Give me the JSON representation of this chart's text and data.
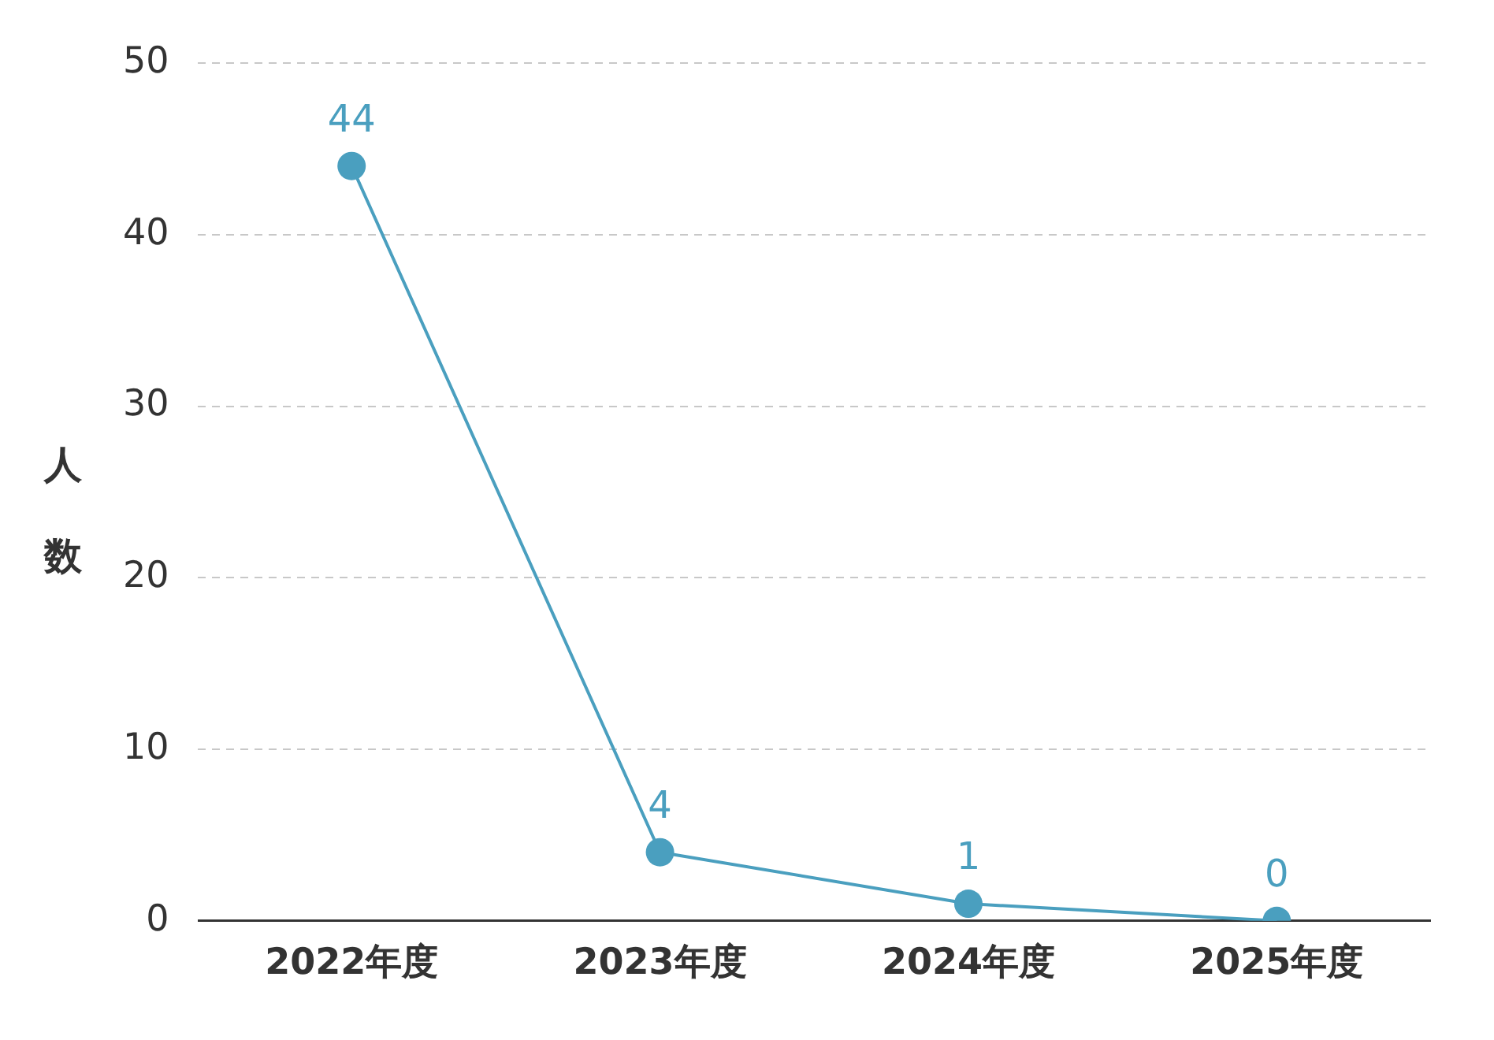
{
  "chart_data": {
    "type": "line",
    "ylabel": "人数",
    "categories": [
      "2022年度",
      "2023年度",
      "2024年度",
      "2025年度"
    ],
    "series": [
      {
        "color": "#4a9fbf",
        "values": [
          44,
          4,
          1,
          0
        ]
      }
    ],
    "ylim": [
      0,
      50
    ],
    "yticks": [
      0,
      10,
      20,
      30,
      40,
      50
    ],
    "grid": "y",
    "legend": false,
    "marker": "circle",
    "line_style": "solid",
    "data_labels": true
  }
}
